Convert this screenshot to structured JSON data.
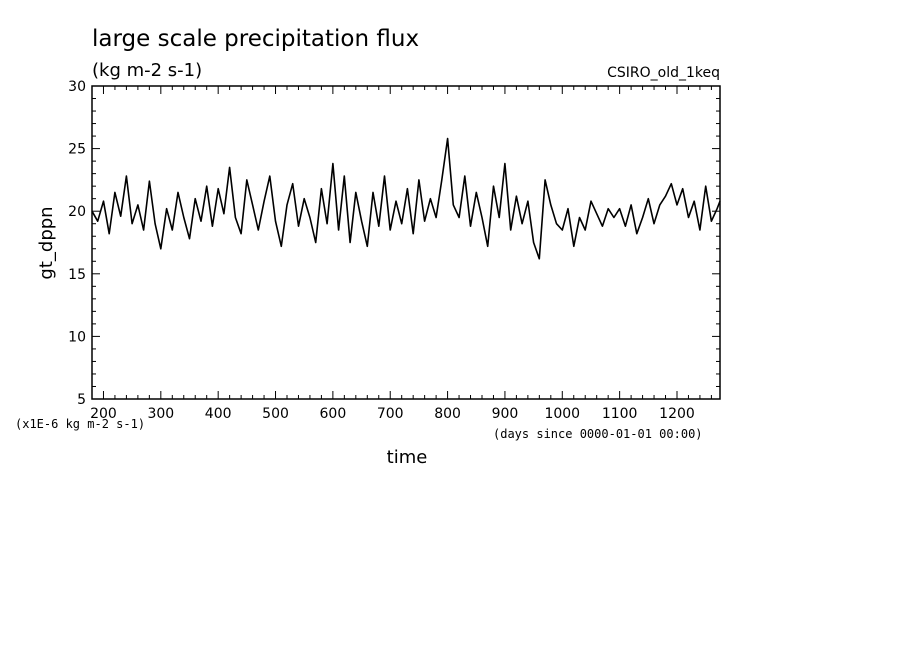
{
  "chart_data": {
    "type": "line",
    "title": "large scale precipitation flux",
    "subtitle": "(kg m-2 s-1)",
    "tag": "CSIRO_old_1keq",
    "xlabel": "time",
    "ylabel": "gt_dppn",
    "x_unit_note": "(days since 0000-01-01 00:00)",
    "y_scale_note": "(x1E-6 kg m-2 s-1)",
    "xlim": [
      180,
      1275
    ],
    "ylim": [
      5,
      30
    ],
    "xticks": [
      200,
      300,
      400,
      500,
      600,
      700,
      800,
      900,
      1000,
      1100,
      1200
    ],
    "yticks": [
      5,
      10,
      15,
      20,
      25,
      30
    ],
    "grid": false,
    "line_color": "#000000",
    "series": [
      {
        "x": [
          180,
          190,
          200,
          210,
          220,
          230,
          240,
          250,
          260,
          270,
          280,
          290,
          300,
          310,
          320,
          330,
          340,
          350,
          360,
          370,
          380,
          390,
          400,
          410,
          420,
          430,
          440,
          450,
          460,
          470,
          480,
          490,
          500,
          510,
          520,
          530,
          540,
          550,
          560,
          570,
          580,
          590,
          600,
          610,
          620,
          630,
          640,
          650,
          660,
          670,
          680,
          690,
          700,
          710,
          720,
          730,
          740,
          750,
          760,
          770,
          780,
          790,
          800,
          810,
          820,
          830,
          840,
          850,
          860,
          870,
          880,
          890,
          900,
          910,
          920,
          930,
          940,
          950,
          960,
          970,
          980,
          990,
          1000,
          1010,
          1020,
          1030,
          1040,
          1050,
          1060,
          1070,
          1080,
          1090,
          1100,
          1110,
          1120,
          1130,
          1140,
          1150,
          1160,
          1170,
          1180,
          1190,
          1200,
          1210,
          1220,
          1230,
          1240,
          1250,
          1260,
          1270,
          1275
        ],
        "y": [
          20.0,
          19.2,
          20.8,
          18.2,
          21.5,
          19.6,
          22.8,
          19.0,
          20.5,
          18.5,
          22.4,
          19.0,
          17.0,
          20.2,
          18.5,
          21.5,
          19.5,
          17.8,
          21.0,
          19.2,
          22.0,
          18.8,
          21.8,
          19.8,
          23.5,
          19.5,
          18.2,
          22.5,
          20.5,
          18.5,
          20.8,
          22.8,
          19.2,
          17.2,
          20.5,
          22.2,
          18.8,
          21.0,
          19.5,
          17.5,
          21.8,
          19.0,
          23.8,
          18.5,
          22.8,
          17.5,
          21.5,
          19.2,
          17.2,
          21.5,
          18.8,
          22.8,
          18.5,
          20.8,
          19.0,
          21.8,
          18.2,
          22.5,
          19.2,
          21.0,
          19.5,
          22.5,
          25.8,
          20.5,
          19.5,
          22.8,
          18.8,
          21.5,
          19.5,
          17.2,
          22.0,
          19.5,
          23.8,
          18.5,
          21.2,
          19.0,
          20.8,
          17.5,
          16.2,
          22.5,
          20.5,
          19.0,
          18.5,
          20.2,
          17.2,
          19.5,
          18.5,
          20.8,
          19.8,
          18.8,
          20.2,
          19.5,
          20.2,
          18.8,
          20.5,
          18.2,
          19.5,
          21.0,
          19.0,
          20.5,
          21.2,
          22.2,
          20.5,
          21.8,
          19.5,
          20.8,
          18.5,
          22.0,
          19.2,
          20.2,
          20.8
        ]
      }
    ]
  }
}
